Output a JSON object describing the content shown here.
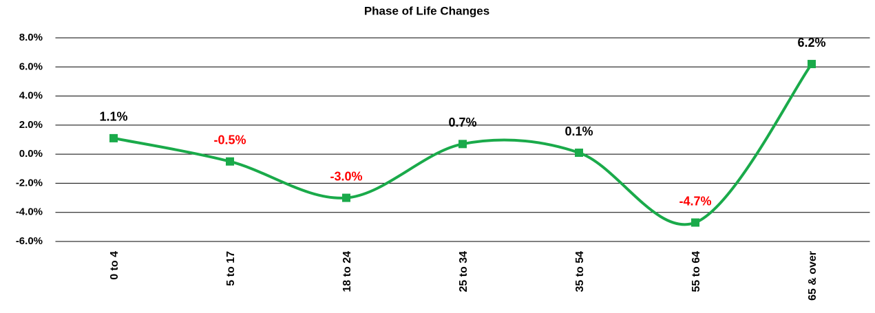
{
  "chart_data": {
    "type": "line",
    "title": "Phase of Life Changes",
    "categories": [
      "0 to 4",
      "5 to 17",
      "18 to 24",
      "25 to 34",
      "35 to 54",
      "55 to 64",
      "65 & over"
    ],
    "values": [
      1.1,
      -0.5,
      -3.0,
      0.7,
      0.1,
      -4.7,
      6.2
    ],
    "value_labels": [
      "1.1%",
      "-0.5%",
      "-3.0%",
      "0.7%",
      "0.1%",
      "-4.7%",
      "6.2%"
    ],
    "color": "#1aaa4a",
    "label_color": "#000000",
    "negative_label_color": "#ff0000",
    "smooth": true,
    "grid": true,
    "ylim": [
      -6,
      8
    ],
    "yticks": [
      {
        "value": -6,
        "label": "-6.0%"
      },
      {
        "value": -4,
        "label": "-4.0%"
      },
      {
        "value": -2,
        "label": "-2.0%"
      },
      {
        "value": 0,
        "label": "0.0%"
      },
      {
        "value": 2,
        "label": "2.0%"
      },
      {
        "value": 4,
        "label": "4.0%"
      },
      {
        "value": 6,
        "label": "6.0%"
      },
      {
        "value": 8,
        "label": "8.0%"
      }
    ]
  }
}
